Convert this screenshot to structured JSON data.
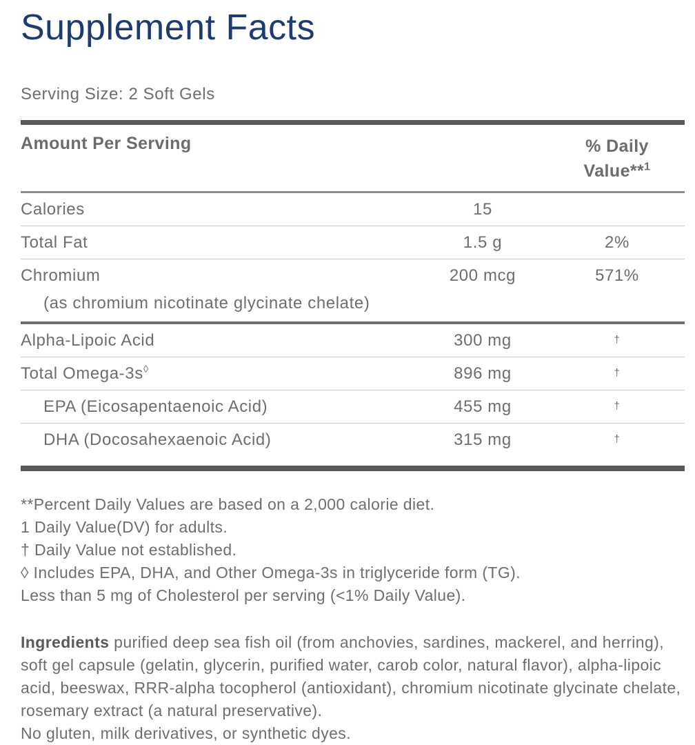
{
  "page": {
    "title": "Supplement Facts",
    "serving_size": "Serving Size: 2 Soft Gels"
  },
  "table": {
    "header": {
      "amount_label": "Amount Per Serving",
      "dv_label_line1": "% Daily",
      "dv_label_line2": "Value**",
      "dv_superscript": "1"
    },
    "rows": [
      {
        "name": "Calories",
        "amount": "15",
        "daily_value": ""
      },
      {
        "name": "Total Fat",
        "amount": "1.5 g",
        "daily_value": "2%"
      },
      {
        "name": "Chromium",
        "detail": "(as chromium nicotinate glycinate chelate)",
        "amount": "200 mcg",
        "daily_value": "571%"
      },
      {
        "name": "Alpha-Lipoic Acid",
        "amount": "300 mg",
        "daily_value": "†"
      },
      {
        "name": "Total Omega-3s",
        "superscript": "◊",
        "amount": "896 mg",
        "daily_value": "†"
      },
      {
        "name": "EPA (Eicosapentaenoic Acid)",
        "amount": "455 mg",
        "daily_value": "†"
      },
      {
        "name": "DHA (Docosahexaenoic Acid)",
        "amount": "315 mg",
        "daily_value": "†"
      }
    ]
  },
  "footnotes": [
    "**Percent Daily Values are based on a 2,000 calorie diet.",
    "1 Daily Value(DV) for adults.",
    "† Daily Value not established.",
    "◊ Includes EPA, DHA, and Other Omega-3s in triglyceride form (TG).",
    "Less than 5 mg of Cholesterol per serving (<1% Daily Value)."
  ],
  "ingredients": {
    "label": "Ingredients",
    "text": " purified deep sea fish oil (from anchovies, sardines, mackerel, and herring), soft gel capsule (gelatin, glycerin, purified water, carob color, natural flavor), alpha-lipoic acid, beeswax, RRR-alpha tocopherol (antioxidant), chromium nicotinate glycinate chelate, rosemary extract (a natural preservative).",
    "allergen_note": "No gluten, milk derivatives, or synthetic dyes."
  },
  "colors": {
    "title_navy": "#1e3a6e",
    "body_gray": "#6d6e71",
    "rule_dark": "#58595b",
    "rule_medium": "#8a8c8e",
    "rule_light": "#c4c6c8"
  }
}
